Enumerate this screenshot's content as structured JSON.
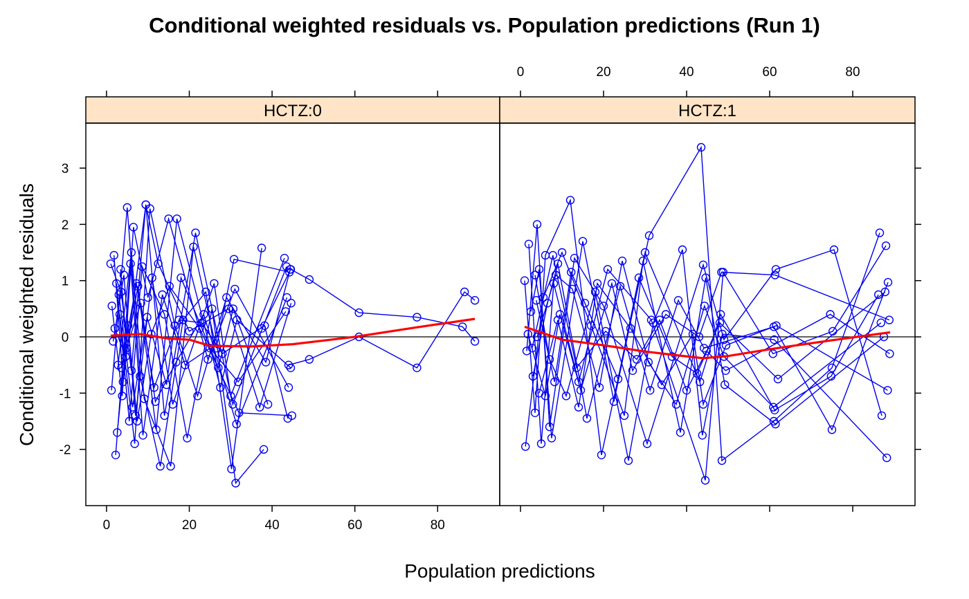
{
  "chart_data": {
    "type": "scatter",
    "title": "Conditional weighted residuals vs. Population predictions (Run 1)",
    "xlabel": "Population predictions",
    "ylabel": "Conditional weighted residuals",
    "xlim": [
      -5,
      95
    ],
    "ylim": [
      -3,
      3.8
    ],
    "x_ticks": [
      0,
      20,
      40,
      60,
      80
    ],
    "y_ticks": [
      -2,
      -1,
      0,
      1,
      2,
      3
    ],
    "reference_line_y": 0,
    "colors": {
      "points": "#0000ee",
      "smooth": "#ff0000",
      "strip": "#ffe4c7"
    },
    "panels": [
      {
        "strip": "HCTZ:0",
        "series": [
          {
            "x": [
              1.0,
              3.5,
              6.0,
              9.5,
              14.0,
              21.5,
              30.5,
              43.5
            ],
            "y": [
              1.3,
              0.8,
              -0.6,
              2.35,
              -1.4,
              1.85,
              -1.2,
              1.25
            ]
          },
          {
            "x": [
              1.3,
              3.8,
              6.5,
              10.0,
              15.0,
              24.5,
              31.0,
              44.0
            ],
            "y": [
              0.55,
              -1.05,
              1.95,
              0.7,
              2.1,
              -0.4,
              0.85,
              -0.9
            ]
          },
          {
            "x": [
              1.6,
              4.2,
              7.0,
              11.0,
              16.0,
              26.0,
              30.0,
              43.0
            ],
            "y": [
              -0.08,
              1.1,
              -1.4,
              1.05,
              -1.2,
              0.95,
              -1.05,
              1.4
            ]
          },
          {
            "x": [
              2.0,
              4.6,
              7.6,
              12.0,
              17.0,
              27.5,
              31.5,
              44.5
            ],
            "y": [
              0.15,
              -0.35,
              0.9,
              -1.65,
              2.1,
              -0.9,
              0.3,
              -0.55
            ]
          },
          {
            "x": [
              1.2,
              5.0,
              8.1,
              13.0,
              18.5,
              24.0,
              30.2,
              37.5
            ],
            "y": [
              -0.95,
              2.3,
              -0.7,
              -2.3,
              0.3,
              0.8,
              -2.35,
              1.58
            ]
          },
          {
            "x": [
              2.4,
              5.5,
              8.6,
              14.0,
              19.5,
              25.5,
              31.2,
              38.0
            ],
            "y": [
              0.95,
              -1.5,
              1.25,
              0.4,
              -1.8,
              0.5,
              -2.6,
              -2.0
            ]
          },
          {
            "x": [
              2.8,
              6.0,
              9.1,
              15.5,
              21.0,
              26.5,
              30.8,
              44.2
            ],
            "y": [
              -0.5,
              1.5,
              -1.1,
              -2.3,
              1.6,
              -0.2,
              1.38,
              1.15
            ]
          },
          {
            "x": [
              1.8,
              4.0,
              9.5,
              12.5,
              20.0,
              29.5,
              37.0,
              44.6
            ],
            "y": [
              1.45,
              -0.8,
              2.35,
              1.3,
              0.1,
              0.5,
              -1.25,
              0.6
            ]
          },
          {
            "x": [
              3.2,
              6.8,
              10.5,
              16.5,
              22.0,
              29.0,
              38.5,
              44.4
            ],
            "y": [
              0.4,
              -1.9,
              2.28,
              0.2,
              -1.05,
              0.7,
              -0.45,
              1.2
            ]
          },
          {
            "x": [
              3.6,
              7.2,
              11.5,
              17.5,
              23.0,
              28.0,
              38.2,
              43.8
            ],
            "y": [
              -0.55,
              0.95,
              -0.9,
              0.3,
              0.25,
              -0.3,
              0.2,
              -1.45
            ]
          },
          {
            "x": [
              2.2,
              5.8,
              8.8,
              13.5,
              19.0,
              25.0,
              31.8,
              43.3
            ],
            "y": [
              -2.1,
              1.3,
              -1.75,
              0.75,
              -0.5,
              -0.2,
              -0.8,
              0.45
            ]
          },
          {
            "x": [
              2.6,
              5.2,
              7.4,
              10.8,
              15.2,
              22.5,
              32.0,
              44.8
            ],
            "y": [
              -1.7,
              0.2,
              -1.5,
              0.05,
              0.9,
              0.15,
              -1.35,
              -1.4
            ]
          },
          {
            "x": [
              3.0,
              6.3,
              9.8,
              14.5,
              18.0,
              27.0,
              30.6,
              39.0
            ],
            "y": [
              0.75,
              -1.25,
              0.35,
              -0.85,
              1.05,
              -0.55,
              0.5,
              -1.2
            ]
          },
          {
            "x": [
              3.4,
              4.8,
              8.3,
              11.8,
              16.8,
              23.5,
              31.4,
              43.6
            ],
            "y": [
              1.2,
              -0.2,
              0.6,
              -1.15,
              -0.45,
              0.4,
              -1.55,
              0.7
            ]
          },
          {
            "x": [
              44.0,
              49.0,
              61.0,
              75.0,
              86.5,
              89.0
            ],
            "y": [
              -0.5,
              -0.4,
              0.0,
              -0.55,
              0.8,
              0.65
            ]
          },
          {
            "x": [
              37.5,
              44.5,
              49.0,
              61.0,
              75.0,
              86.0,
              89.0
            ],
            "y": [
              0.15,
              1.2,
              1.02,
              0.43,
              0.35,
              0.18,
              -0.08
            ]
          }
        ],
        "smooth": {
          "x": [
            1,
            8,
            15,
            20,
            25,
            35,
            45,
            60,
            75,
            89
          ],
          "y": [
            0.02,
            0.05,
            -0.03,
            -0.05,
            -0.16,
            -0.17,
            -0.13,
            0.0,
            0.17,
            0.32
          ]
        }
      },
      {
        "strip": "HCTZ:1",
        "series": [
          {
            "x": [
              1.0,
              3.5,
              6.0,
              12.0,
              19.5,
              31.0,
              43.5,
              48.5,
              61.0,
              75.0,
              86.5
            ],
            "y": [
              1.0,
              -1.35,
              1.45,
              2.43,
              -2.1,
              1.8,
              3.37,
              -2.2,
              -1.5,
              -0.55,
              1.85
            ]
          },
          {
            "x": [
              1.5,
              4.0,
              7.0,
              13.0,
              20.0,
              30.5,
              44.0,
              49.0,
              61.5,
              75.5,
              87.0
            ],
            "y": [
              -0.25,
              2.0,
              -1.6,
              1.4,
              0.55,
              -1.9,
              1.28,
              -0.05,
              1.2,
              1.55,
              -1.4
            ]
          },
          {
            "x": [
              2.0,
              5.0,
              8.0,
              14.0,
              21.0,
              31.5,
              44.5,
              48.8,
              60.8,
              75.2,
              88.0
            ],
            "y": [
              1.65,
              -1.9,
              0.95,
              -0.8,
              1.2,
              0.3,
              -2.55,
              1.15,
              -0.3,
              0.1,
              1.62
            ]
          },
          {
            "x": [
              2.5,
              4.5,
              7.5,
              15.0,
              22.5,
              30.0,
              43.2,
              48.2,
              61.2,
              74.8,
              86.2
            ],
            "y": [
              0.45,
              1.2,
              -1.8,
              1.7,
              -1.15,
              1.5,
              -0.8,
              0.4,
              -1.3,
              -0.7,
              0.75
            ]
          },
          {
            "x": [
              3.0,
              6.5,
              9.0,
              16.0,
              24.0,
              31.2,
              38.0,
              44.2,
              61.0,
              75.0,
              88.5
            ],
            "y": [
              -0.7,
              0.6,
              1.3,
              -1.45,
              0.9,
              -0.95,
              0.65,
              -0.2,
              0.18,
              -1.65,
              0.97
            ]
          },
          {
            "x": [
              1.2,
              5.5,
              10.0,
              17.0,
              25.0,
              29.5,
              38.5,
              44.6,
              49.2,
              61.4,
              87.5
            ],
            "y": [
              -1.95,
              0.7,
              1.5,
              0.2,
              -1.4,
              1.35,
              -1.7,
              1.05,
              -0.85,
              -1.55,
              0.0
            ]
          },
          {
            "x": [
              3.5,
              7.0,
              11.0,
              18.0,
              26.0,
              32.0,
              39.0,
              43.8,
              48.6,
              61.1,
              88.2
            ],
            "y": [
              1.1,
              -0.4,
              -1.05,
              0.8,
              -2.2,
              0.25,
              1.55,
              -1.75,
              0.05,
              -0.05,
              -2.15
            ]
          },
          {
            "x": [
              4.0,
              8.5,
              12.5,
              19.0,
              24.5,
              30.8,
              37.5,
              44.3,
              49.0,
              60.9,
              86.8
            ],
            "y": [
              0.0,
              1.1,
              0.85,
              -0.9,
              1.35,
              -0.45,
              -1.2,
              0.55,
              -0.35,
              -1.25,
              0.25
            ]
          },
          {
            "x": [
              1.8,
              6.0,
              9.5,
              14.5,
              22.0,
              27.0,
              35.0,
              43.0,
              48.4,
              61.3,
              88.8
            ],
            "y": [
              0.05,
              -1.05,
              0.4,
              -0.95,
              0.95,
              -0.6,
              0.4,
              0.0,
              1.15,
              1.1,
              0.3
            ]
          },
          {
            "x": [
              2.8,
              7.8,
              13.5,
              20.5,
              28.0,
              33.5,
              40.0,
              44.8,
              49.4,
              74.6,
              88.9
            ],
            "y": [
              -0.2,
              1.45,
              -0.55,
              0.1,
              -0.4,
              0.3,
              -0.95,
              -0.25,
              -0.6,
              0.4,
              -0.3
            ]
          },
          {
            "x": [
              3.8,
              8.2,
              12.2,
              15.5,
              23.5,
              28.5,
              36.5,
              42.5,
              48.0,
              62.0,
              87.8
            ],
            "y": [
              0.65,
              -0.8,
              1.15,
              0.6,
              -0.75,
              1.05,
              -0.35,
              -0.65,
              0.25,
              -0.75,
              0.8
            ]
          },
          {
            "x": [
              4.5,
              9.0,
              14.0,
              18.5,
              26.5,
              34.0,
              41.5,
              44.0,
              49.5,
              61.6,
              88.4
            ],
            "y": [
              -1.0,
              0.3,
              -1.25,
              0.95,
              0.15,
              -0.85,
              0.05,
              -1.2,
              -0.15,
              0.2,
              -0.95
            ]
          }
        ],
        "smooth": {
          "x": [
            1,
            10,
            20,
            30,
            38,
            44,
            50,
            60,
            75,
            89
          ],
          "y": [
            0.18,
            -0.05,
            -0.15,
            -0.26,
            -0.33,
            -0.38,
            -0.34,
            -0.22,
            -0.06,
            0.08
          ]
        }
      }
    ]
  }
}
